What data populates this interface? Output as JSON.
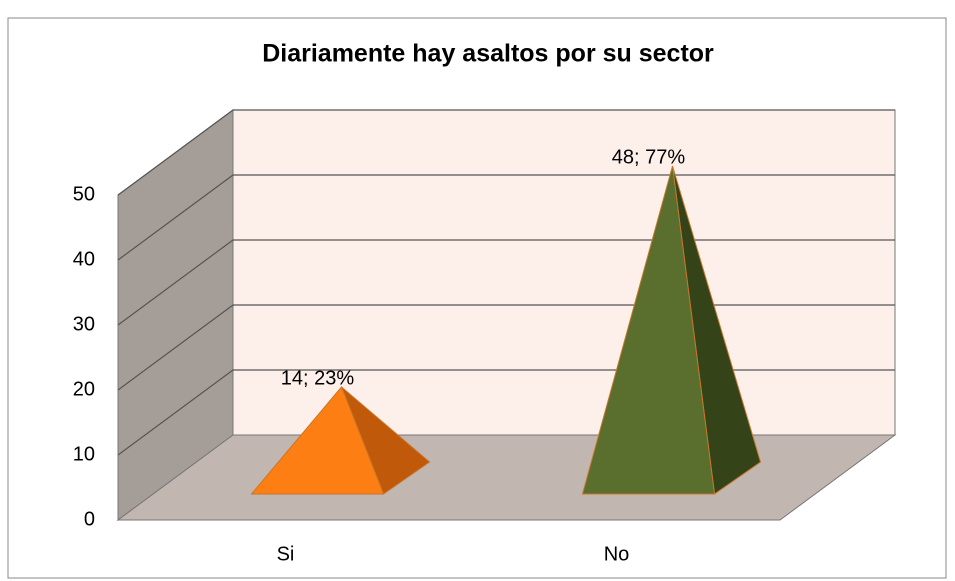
{
  "chart_data": {
    "type": "pyramid",
    "title": "Diariamente hay asaltos por su sector",
    "categories": [
      "Si",
      "No"
    ],
    "values": [
      14,
      48
    ],
    "value_labels": [
      "14; 23%",
      "48; 77%"
    ],
    "colors": [
      "#fd7f13",
      "#5a6e2e"
    ],
    "side_colors": [
      "#c0590a",
      "#354418"
    ],
    "ylim": [
      0,
      50
    ],
    "yticks": [
      0,
      10,
      20,
      30,
      40,
      50
    ],
    "grid": true
  }
}
